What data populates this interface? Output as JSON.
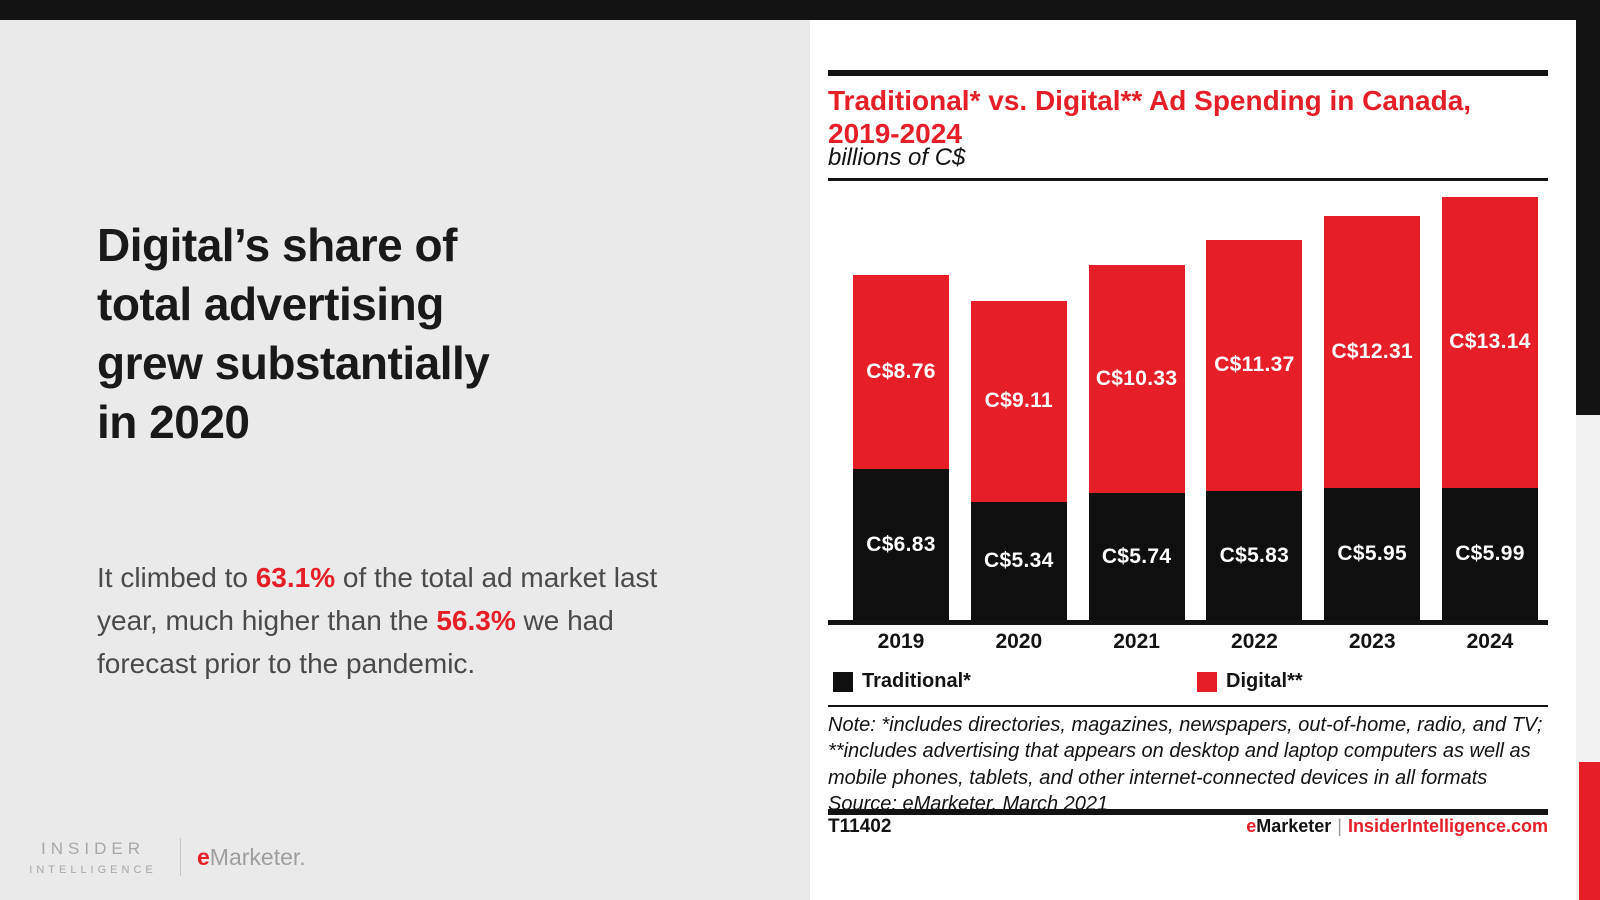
{
  "colors": {
    "accent_red": "#e61e28",
    "bar_black": "#0f0f0f",
    "left_panel_bg": "#eaeaea",
    "top_bar": "#131313"
  },
  "left_panel": {
    "headline_lines": [
      "Digital’s share of",
      "total advertising",
      "grew substantially",
      "in 2020"
    ],
    "paragraph_segments": [
      {
        "text": "It climbed to "
      },
      {
        "text": "63.1%",
        "highlight": true
      },
      {
        "text": " of the total ad market last"
      },
      {
        "break": true
      },
      {
        "text": "year, much higher than the "
      },
      {
        "text": "56.3%",
        "highlight": true
      },
      {
        "text": " we had"
      },
      {
        "break": true
      },
      {
        "text": "forecast prior to the pandemic."
      }
    ],
    "logos": {
      "insider_line1": "INSIDER",
      "insider_line2": "INTELLIGENCE",
      "emarketer_e": "e",
      "emarketer_rest": "Marketer."
    }
  },
  "chart_panel": {
    "title_lines": [
      "Traditional* vs. Digital** Ad Spending in Canada,",
      "2019-2024"
    ],
    "note_lines": [
      "Note: *includes directories, magazines, newspapers, out-of-home, radio, and TV;",
      "**includes advertising that appears on desktop and laptop computers as well as",
      "mobile phones, tablets, and other internet-connected devices in all formats",
      "Source: eMarketer, March 2021"
    ],
    "footer": {
      "chart_id": "T11402",
      "brand_e": "e",
      "brand_rest": "Marketer",
      "separator": "|",
      "site": "InsiderIntelligence.com"
    }
  },
  "chart_data": {
    "type": "bar",
    "stacked": true,
    "title": "Traditional* vs. Digital** Ad Spending in Canada, 2019-2024",
    "subtitle": "billions of C$",
    "xlabel": "",
    "ylabel": "",
    "categories": [
      "2019",
      "2020",
      "2021",
      "2022",
      "2023",
      "2024"
    ],
    "series": [
      {
        "name": "Traditional*",
        "color": "#0f0f0f",
        "values": [
          6.83,
          5.34,
          5.74,
          5.83,
          5.95,
          5.99
        ]
      },
      {
        "name": "Digital**",
        "color": "#e61e28",
        "values": [
          8.76,
          9.11,
          10.33,
          11.37,
          12.31,
          13.14
        ]
      }
    ],
    "value_prefix": "C$",
    "ylim": [
      0,
      19.13
    ],
    "grid": false,
    "legend_position": "bottom"
  }
}
